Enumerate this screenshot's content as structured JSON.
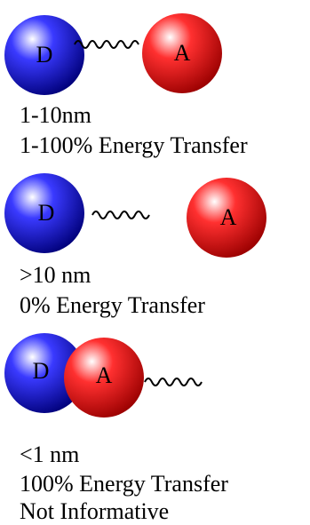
{
  "panels": [
    {
      "donor": "D",
      "acceptor": "A",
      "lines": [
        "1-10nm",
        "1-100% Energy Transfer"
      ]
    },
    {
      "donor": "D",
      "acceptor": "A",
      "lines": [
        ">10 nm",
        "0% Energy Transfer"
      ]
    },
    {
      "donor": "D",
      "acceptor": "A",
      "lines": [
        "<1 nm",
        "100% Energy Transfer",
        "Not Informative"
      ]
    }
  ]
}
